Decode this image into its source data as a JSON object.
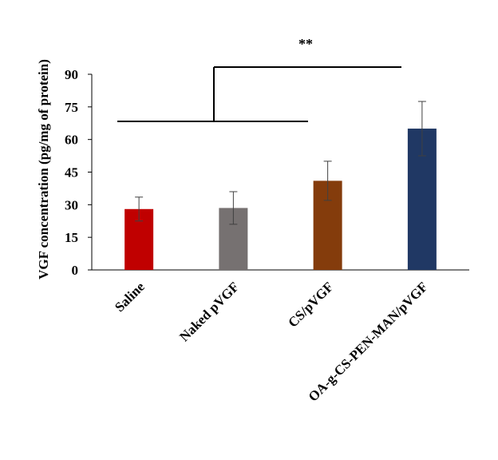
{
  "chart_data": {
    "type": "bar",
    "ylabel": "VGF concentration  (pg/mg of protein)",
    "ylim": [
      0,
      90
    ],
    "yticks": [
      0,
      15,
      30,
      45,
      60,
      75,
      90
    ],
    "grid": false,
    "categories": [
      "Saline",
      "Naked pVGF",
      "CS/pVGF",
      "OA-g-CS-PEN-MAN/pVGF"
    ],
    "values": [
      28,
      28.5,
      41,
      65
    ],
    "errors": [
      5.5,
      7.5,
      9,
      12.5
    ],
    "colors": [
      "#C00000",
      "#767171",
      "#843C0C",
      "#203864"
    ],
    "significance": {
      "label": "**",
      "comparison": "Saline, Naked pVGF, CS/pVGF vs OA-g-CS-PEN-MAN/pVGF"
    }
  }
}
